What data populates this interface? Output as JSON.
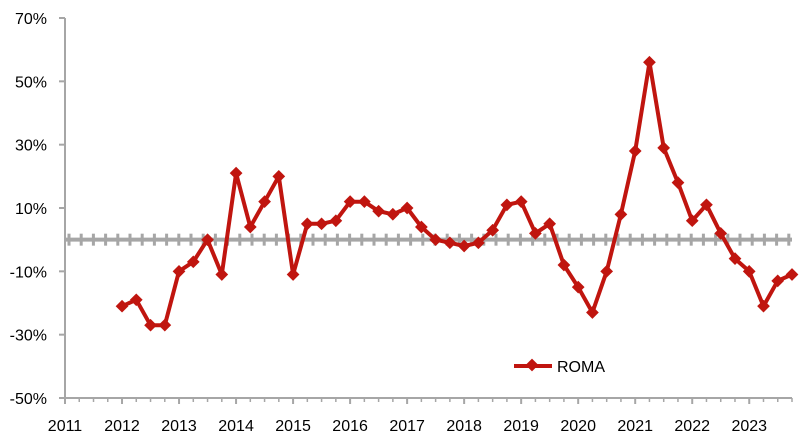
{
  "chart_data": {
    "type": "line",
    "x_tick_labels": [
      "2011",
      "2012",
      "2013",
      "2014",
      "2015",
      "2016",
      "2017",
      "2018",
      "2019",
      "2020",
      "2021",
      "2022",
      "2023"
    ],
    "y_tick_labels": [
      "70%",
      "50%",
      "30%",
      "10%",
      "-10%",
      "-30%",
      "-50%"
    ],
    "y_ticks": [
      70,
      50,
      30,
      10,
      -10,
      -30,
      -50
    ],
    "ylim": [
      -50,
      70
    ],
    "xlim": [
      2011,
      2023.75
    ],
    "reference_line": 0,
    "series": [
      {
        "name": "ROMA",
        "color": "#c0150f",
        "points": [
          {
            "x": 2012.0,
            "y": -21
          },
          {
            "x": 2012.25,
            "y": -19
          },
          {
            "x": 2012.5,
            "y": -27
          },
          {
            "x": 2012.75,
            "y": -27
          },
          {
            "x": 2013.0,
            "y": -10
          },
          {
            "x": 2013.25,
            "y": -7
          },
          {
            "x": 2013.5,
            "y": 0
          },
          {
            "x": 2013.75,
            "y": -11
          },
          {
            "x": 2014.0,
            "y": 21
          },
          {
            "x": 2014.25,
            "y": 4
          },
          {
            "x": 2014.5,
            "y": 12
          },
          {
            "x": 2014.75,
            "y": 20
          },
          {
            "x": 2015.0,
            "y": -11
          },
          {
            "x": 2015.25,
            "y": 5
          },
          {
            "x": 2015.5,
            "y": 5
          },
          {
            "x": 2015.75,
            "y": 6
          },
          {
            "x": 2016.0,
            "y": 12
          },
          {
            "x": 2016.25,
            "y": 12
          },
          {
            "x": 2016.5,
            "y": 9
          },
          {
            "x": 2016.75,
            "y": 8
          },
          {
            "x": 2017.0,
            "y": 10
          },
          {
            "x": 2017.25,
            "y": 4
          },
          {
            "x": 2017.5,
            "y": 0
          },
          {
            "x": 2017.75,
            "y": -1
          },
          {
            "x": 2018.0,
            "y": -2
          },
          {
            "x": 2018.25,
            "y": -1
          },
          {
            "x": 2018.5,
            "y": 3
          },
          {
            "x": 2018.75,
            "y": 11
          },
          {
            "x": 2019.0,
            "y": 12
          },
          {
            "x": 2019.25,
            "y": 2
          },
          {
            "x": 2019.5,
            "y": 5
          },
          {
            "x": 2019.75,
            "y": -8
          },
          {
            "x": 2020.0,
            "y": -15
          },
          {
            "x": 2020.25,
            "y": -23
          },
          {
            "x": 2020.5,
            "y": -10
          },
          {
            "x": 2020.75,
            "y": 8
          },
          {
            "x": 2021.0,
            "y": 28
          },
          {
            "x": 2021.25,
            "y": 56
          },
          {
            "x": 2021.5,
            "y": 29
          },
          {
            "x": 2021.75,
            "y": 18
          },
          {
            "x": 2022.0,
            "y": 6
          },
          {
            "x": 2022.25,
            "y": 11
          },
          {
            "x": 2022.5,
            "y": 2
          },
          {
            "x": 2022.75,
            "y": -6
          },
          {
            "x": 2023.0,
            "y": -10
          },
          {
            "x": 2023.25,
            "y": -21
          },
          {
            "x": 2023.5,
            "y": -13
          },
          {
            "x": 2023.75,
            "y": -11
          }
        ]
      }
    ],
    "legend": {
      "position": "bottom-center"
    },
    "grid": false
  }
}
